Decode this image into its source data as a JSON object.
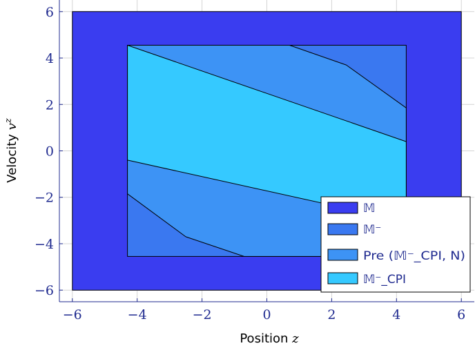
{
  "chart_data": {
    "type": "area",
    "xlabel": "Position z",
    "ylabel": "Velocity v^z",
    "xlabel_parts": {
      "text": "Position ",
      "var": "z"
    },
    "ylabel_parts": {
      "text": "Velocity ",
      "var": "v",
      "sup": "z"
    },
    "xlim": [
      -6.4,
      6.4
    ],
    "ylim": [
      -6.5,
      6.5
    ],
    "xticks": [
      -6,
      -4,
      -2,
      0,
      2,
      4,
      6
    ],
    "yticks": [
      -6,
      -4,
      -2,
      0,
      2,
      4,
      6
    ],
    "tick_labels": [
      "−6",
      "−4",
      "−2",
      "0",
      "2",
      "4",
      "6"
    ],
    "grid": true,
    "legend_position": "bottom-right",
    "series": [
      {
        "name": "𝕄",
        "color": "#3a3df0",
        "polygon": [
          [
            -6,
            -6
          ],
          [
            6,
            -6
          ],
          [
            6,
            6
          ],
          [
            -6,
            6
          ]
        ]
      },
      {
        "name": "𝕄⁻",
        "color": "#3a78f0",
        "polygon": [
          [
            -4.3,
            -4.55
          ],
          [
            4.3,
            -4.55
          ],
          [
            4.3,
            4.55
          ],
          [
            -4.3,
            4.55
          ]
        ]
      },
      {
        "name": "Pre (𝕄⁻_CPI, N)",
        "color": "#3d93f5",
        "polygon": [
          [
            -4.3,
            -1.85
          ],
          [
            -2.5,
            -3.7
          ],
          [
            -0.7,
            -4.55
          ],
          [
            4.3,
            -4.55
          ],
          [
            4.3,
            1.85
          ],
          [
            2.45,
            3.7
          ],
          [
            0.7,
            4.55
          ],
          [
            -4.3,
            4.55
          ]
        ]
      },
      {
        "name": "𝕄⁻_CPI",
        "color": "#35c9ff",
        "polygon": [
          [
            -4.3,
            -0.4
          ],
          [
            4.3,
            -3.05
          ],
          [
            4.3,
            0.4
          ],
          [
            -4.3,
            4.55
          ]
        ]
      }
    ]
  }
}
